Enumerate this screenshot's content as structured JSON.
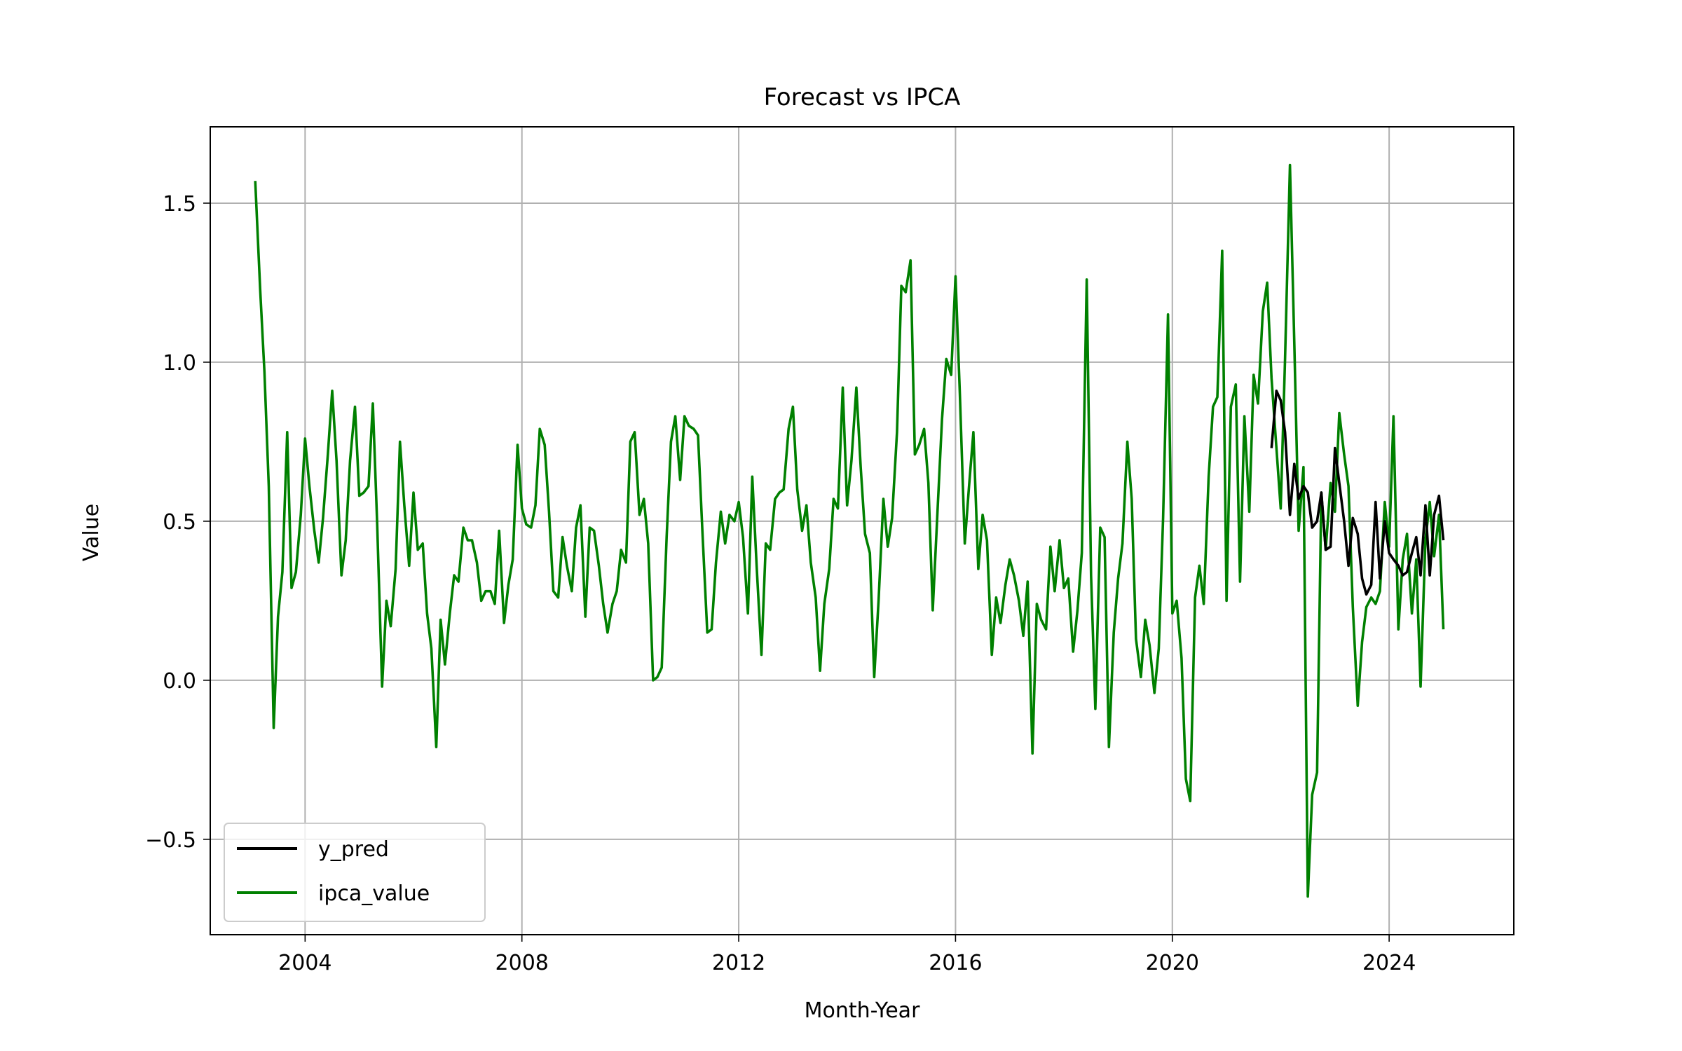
{
  "chart_data": {
    "type": "line",
    "title": "Forecast vs IPCA",
    "xlabel": "Month-Year",
    "ylabel": "Value",
    "xlim": [
      2002.25,
      2026.3
    ],
    "ylim": [
      -0.8,
      1.74
    ],
    "x_ticks": [
      2004,
      2008,
      2012,
      2016,
      2020,
      2024
    ],
    "x_tick_labels": [
      "2004",
      "2008",
      "2012",
      "2016",
      "2020",
      "2024"
    ],
    "y_ticks": [
      -0.5,
      0.0,
      0.5,
      1.0,
      1.5
    ],
    "y_tick_labels": [
      "−0.5",
      "0.0",
      "0.5",
      "1.0",
      "1.5"
    ],
    "grid": true,
    "legend_position": "lower-left",
    "series": [
      {
        "name": "y_pred",
        "color": "#000000",
        "x": [
          2021.83,
          2021.92,
          2022.0,
          2022.08,
          2022.17,
          2022.25,
          2022.33,
          2022.42,
          2022.5,
          2022.58,
          2022.67,
          2022.75,
          2022.83,
          2022.92,
          2023.0,
          2023.08,
          2023.17,
          2023.25,
          2023.33,
          2023.42,
          2023.5,
          2023.58,
          2023.67,
          2023.75,
          2023.83,
          2023.92,
          2024.0,
          2024.08,
          2024.17,
          2024.25,
          2024.33,
          2024.42,
          2024.5,
          2024.58,
          2024.67,
          2024.75,
          2024.83,
          2024.92,
          2025.0
        ],
        "y": [
          0.73,
          0.91,
          0.88,
          0.78,
          0.52,
          0.68,
          0.57,
          0.61,
          0.59,
          0.48,
          0.5,
          0.59,
          0.41,
          0.42,
          0.73,
          0.62,
          0.5,
          0.36,
          0.51,
          0.46,
          0.32,
          0.27,
          0.3,
          0.56,
          0.32,
          0.5,
          0.4,
          0.38,
          0.36,
          0.33,
          0.34,
          0.4,
          0.45,
          0.33,
          0.55,
          0.33,
          0.52,
          0.58,
          0.44
        ]
      },
      {
        "name": "ipca_value",
        "color": "#008000",
        "x": [
          2003.08,
          2003.17,
          2003.25,
          2003.33,
          2003.42,
          2003.5,
          2003.58,
          2003.67,
          2003.75,
          2003.83,
          2003.92,
          2004.0,
          2004.08,
          2004.17,
          2004.25,
          2004.33,
          2004.42,
          2004.5,
          2004.58,
          2004.67,
          2004.75,
          2004.83,
          2004.92,
          2005.0,
          2005.08,
          2005.17,
          2005.25,
          2005.33,
          2005.42,
          2005.5,
          2005.58,
          2005.67,
          2005.75,
          2005.83,
          2005.92,
          2006.0,
          2006.08,
          2006.17,
          2006.25,
          2006.33,
          2006.42,
          2006.5,
          2006.58,
          2006.67,
          2006.75,
          2006.83,
          2006.92,
          2007.0,
          2007.08,
          2007.17,
          2007.25,
          2007.33,
          2007.42,
          2007.5,
          2007.58,
          2007.67,
          2007.75,
          2007.83,
          2007.92,
          2008.0,
          2008.08,
          2008.17,
          2008.25,
          2008.33,
          2008.42,
          2008.5,
          2008.58,
          2008.67,
          2008.75,
          2008.83,
          2008.92,
          2009.0,
          2009.08,
          2009.17,
          2009.25,
          2009.33,
          2009.42,
          2009.5,
          2009.58,
          2009.67,
          2009.75,
          2009.83,
          2009.92,
          2010.0,
          2010.08,
          2010.17,
          2010.25,
          2010.33,
          2010.42,
          2010.5,
          2010.58,
          2010.67,
          2010.75,
          2010.83,
          2010.92,
          2011.0,
          2011.08,
          2011.17,
          2011.25,
          2011.33,
          2011.42,
          2011.5,
          2011.58,
          2011.67,
          2011.75,
          2011.83,
          2011.92,
          2012.0,
          2012.08,
          2012.17,
          2012.25,
          2012.33,
          2012.42,
          2012.5,
          2012.58,
          2012.67,
          2012.75,
          2012.83,
          2012.92,
          2013.0,
          2013.08,
          2013.17,
          2013.25,
          2013.33,
          2013.42,
          2013.5,
          2013.58,
          2013.67,
          2013.75,
          2013.83,
          2013.92,
          2014.0,
          2014.08,
          2014.17,
          2014.25,
          2014.33,
          2014.42,
          2014.5,
          2014.58,
          2014.67,
          2014.75,
          2014.83,
          2014.92,
          2015.0,
          2015.08,
          2015.17,
          2015.25,
          2015.33,
          2015.42,
          2015.5,
          2015.58,
          2015.67,
          2015.75,
          2015.83,
          2015.92,
          2016.0,
          2016.08,
          2016.17,
          2016.25,
          2016.33,
          2016.42,
          2016.5,
          2016.58,
          2016.67,
          2016.75,
          2016.83,
          2016.92,
          2017.0,
          2017.08,
          2017.17,
          2017.25,
          2017.33,
          2017.42,
          2017.5,
          2017.58,
          2017.67,
          2017.75,
          2017.83,
          2017.92,
          2018.0,
          2018.08,
          2018.17,
          2018.25,
          2018.33,
          2018.42,
          2018.5,
          2018.58,
          2018.67,
          2018.75,
          2018.83,
          2018.92,
          2019.0,
          2019.08,
          2019.17,
          2019.25,
          2019.33,
          2019.42,
          2019.5,
          2019.58,
          2019.67,
          2019.75,
          2019.83,
          2019.92,
          2020.0,
          2020.08,
          2020.17,
          2020.25,
          2020.33,
          2020.42,
          2020.5,
          2020.58,
          2020.67,
          2020.75,
          2020.83,
          2020.92,
          2021.0,
          2021.08,
          2021.17,
          2021.25,
          2021.33,
          2021.42,
          2021.5,
          2021.58,
          2021.67,
          2021.75,
          2021.83,
          2021.92,
          2022.0,
          2022.08,
          2022.17,
          2022.25,
          2022.33,
          2022.42,
          2022.5,
          2022.58,
          2022.67,
          2022.75,
          2022.83,
          2022.92,
          2023.0,
          2023.08,
          2023.17,
          2023.25,
          2023.33,
          2023.42,
          2023.5,
          2023.58,
          2023.67,
          2023.75,
          2023.83,
          2023.92,
          2024.0,
          2024.08,
          2024.17,
          2024.25,
          2024.33,
          2024.42,
          2024.5,
          2024.58,
          2024.67,
          2024.75,
          2024.83,
          2024.92,
          2025.0
        ],
        "y": [
          1.57,
          1.23,
          0.97,
          0.61,
          -0.15,
          0.2,
          0.34,
          0.78,
          0.29,
          0.34,
          0.52,
          0.76,
          0.61,
          0.47,
          0.37,
          0.51,
          0.71,
          0.91,
          0.69,
          0.33,
          0.44,
          0.69,
          0.86,
          0.58,
          0.59,
          0.61,
          0.87,
          0.49,
          -0.02,
          0.25,
          0.17,
          0.35,
          0.75,
          0.55,
          0.36,
          0.59,
          0.41,
          0.43,
          0.21,
          0.1,
          -0.21,
          0.19,
          0.05,
          0.21,
          0.33,
          0.31,
          0.48,
          0.44,
          0.44,
          0.37,
          0.25,
          0.28,
          0.28,
          0.24,
          0.47,
          0.18,
          0.3,
          0.38,
          0.74,
          0.54,
          0.49,
          0.48,
          0.55,
          0.79,
          0.74,
          0.53,
          0.28,
          0.26,
          0.45,
          0.36,
          0.28,
          0.48,
          0.55,
          0.2,
          0.48,
          0.47,
          0.36,
          0.24,
          0.15,
          0.24,
          0.28,
          0.41,
          0.37,
          0.75,
          0.78,
          0.52,
          0.57,
          0.43,
          0.0,
          0.01,
          0.04,
          0.45,
          0.75,
          0.83,
          0.63,
          0.83,
          0.8,
          0.79,
          0.77,
          0.47,
          0.15,
          0.16,
          0.37,
          0.53,
          0.43,
          0.52,
          0.5,
          0.56,
          0.45,
          0.21,
          0.64,
          0.36,
          0.08,
          0.43,
          0.41,
          0.57,
          0.59,
          0.6,
          0.79,
          0.86,
          0.6,
          0.47,
          0.55,
          0.37,
          0.26,
          0.03,
          0.24,
          0.35,
          0.57,
          0.54,
          0.92,
          0.55,
          0.69,
          0.92,
          0.67,
          0.46,
          0.4,
          0.01,
          0.25,
          0.57,
          0.42,
          0.51,
          0.78,
          1.24,
          1.22,
          1.32,
          0.71,
          0.74,
          0.79,
          0.62,
          0.22,
          0.54,
          0.82,
          1.01,
          0.96,
          1.27,
          0.9,
          0.43,
          0.61,
          0.78,
          0.35,
          0.52,
          0.44,
          0.08,
          0.26,
          0.18,
          0.3,
          0.38,
          0.33,
          0.25,
          0.14,
          0.31,
          -0.23,
          0.24,
          0.19,
          0.16,
          0.42,
          0.28,
          0.44,
          0.29,
          0.32,
          0.09,
          0.22,
          0.4,
          1.26,
          0.33,
          -0.09,
          0.48,
          0.45,
          -0.21,
          0.15,
          0.32,
          0.43,
          0.75,
          0.57,
          0.13,
          0.01,
          0.19,
          0.11,
          -0.04,
          0.1,
          0.51,
          1.15,
          0.21,
          0.25,
          0.07,
          -0.31,
          -0.38,
          0.26,
          0.36,
          0.24,
          0.64,
          0.86,
          0.89,
          1.35,
          0.25,
          0.86,
          0.93,
          0.31,
          0.83,
          0.53,
          0.96,
          0.87,
          1.16,
          1.25,
          0.95,
          0.73,
          0.54,
          1.01,
          1.62,
          1.06,
          0.47,
          0.67,
          -0.68,
          -0.36,
          -0.29,
          0.59,
          0.41,
          0.62,
          0.53,
          0.84,
          0.71,
          0.61,
          0.23,
          -0.08,
          0.12,
          0.23,
          0.26,
          0.24,
          0.28,
          0.56,
          0.42,
          0.83,
          0.16,
          0.38,
          0.46,
          0.21,
          0.38,
          -0.02,
          0.44,
          0.56,
          0.39,
          0.52,
          0.16
        ]
      }
    ]
  }
}
